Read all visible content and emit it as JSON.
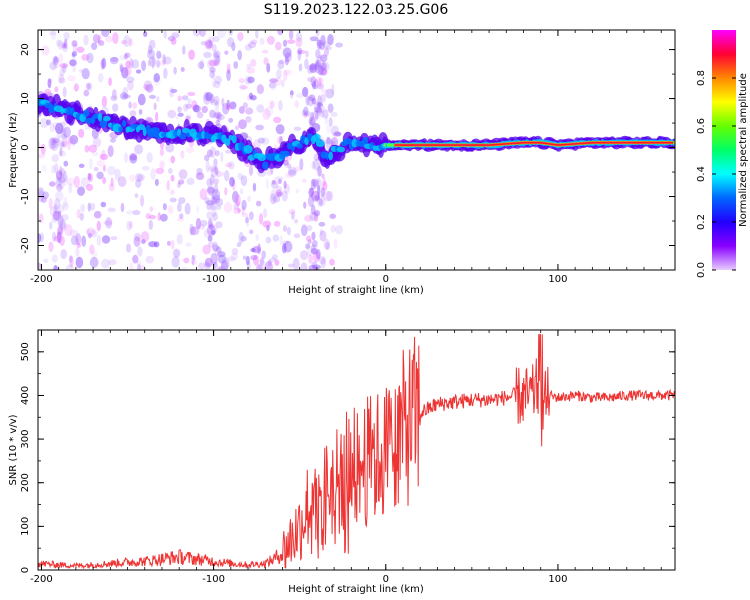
{
  "figure": {
    "title": "S119.2023.122.03.25.G06"
  },
  "colors": {
    "snr_line": "#ee3333",
    "frame": "#000000",
    "ridge": "#5500ee",
    "scatter": "#9966ee",
    "colormap": [
      "#ff00ff",
      "#ff0033",
      "#ff8800",
      "#ffff00",
      "#66ff00",
      "#00ff66",
      "#00ffff",
      "#0066ff",
      "#2200ff",
      "#8800ff",
      "#e8ccff"
    ]
  },
  "chart_data": [
    {
      "type": "heatmap",
      "xlabel": "Height of straight line (km)",
      "ylabel": "Frequency (Hz)",
      "xlim": [
        -202,
        168
      ],
      "ylim": [
        -25,
        24
      ],
      "xticks": [
        "-200",
        "-100",
        "0",
        "100"
      ],
      "yticks": [
        "20",
        "10",
        "0",
        "-10",
        "-20"
      ],
      "colorbar": {
        "label": "Normalized spectral amplitude",
        "range": [
          0,
          1
        ],
        "ticks": [
          "0.0",
          "0.2",
          "0.4",
          "0.6",
          "0.8"
        ]
      },
      "ridge": {
        "x": [
          -200,
          -190,
          -180,
          -170,
          -160,
          -150,
          -140,
          -130,
          -120,
          -110,
          -100,
          -90,
          -80,
          -70,
          -60,
          -50,
          -45,
          -40,
          -35,
          -30,
          -25,
          -20,
          -15,
          -10,
          -5,
          0,
          10,
          20,
          40,
          60,
          80,
          90,
          100,
          120,
          140,
          168
        ],
        "y": [
          9,
          8,
          7,
          6,
          5,
          4,
          3.5,
          3,
          3,
          3,
          2.5,
          1.5,
          -1,
          -3,
          -1,
          1,
          2,
          1.5,
          -2,
          -1,
          0,
          1,
          1.5,
          0.5,
          0.5,
          0.5,
          0.5,
          0.5,
          0.5,
          0.5,
          1,
          1,
          0.5,
          1,
          1,
          1
        ]
      }
    },
    {
      "type": "line",
      "xlabel": "Height of straight line (km)",
      "ylabel": "SNR (10 * v/v)",
      "xlim": [
        -202,
        168
      ],
      "ylim": [
        0,
        550
      ],
      "xticks": [
        "-200",
        "-100",
        "0",
        "100"
      ],
      "yticks": [
        "500",
        "400",
        "300",
        "200",
        "100",
        "0"
      ],
      "series": [
        {
          "x": [
            -202,
            -190,
            -180,
            -170,
            -160,
            -150,
            -140,
            -130,
            -120,
            -110,
            -100,
            -90,
            -80,
            -70,
            -65,
            -60,
            -55,
            -50,
            -45,
            -40,
            -35,
            -30,
            -25,
            -20,
            -15,
            -10,
            -5,
            0,
            5,
            10,
            15,
            20,
            25,
            30,
            40,
            50,
            60,
            70,
            75,
            80,
            85,
            88,
            90,
            92,
            95,
            100,
            110,
            120,
            130,
            140,
            150,
            160,
            168
          ],
          "y": [
            15,
            12,
            10,
            12,
            15,
            18,
            20,
            25,
            30,
            25,
            20,
            15,
            12,
            15,
            25,
            40,
            70,
            100,
            150,
            180,
            190,
            200,
            220,
            230,
            240,
            250,
            260,
            270,
            300,
            320,
            340,
            360,
            370,
            380,
            385,
            390,
            390,
            395,
            400,
            395,
            400,
            420,
            330,
            390,
            400,
            395,
            400,
            395,
            395,
            400,
            400,
            400,
            400
          ]
        }
      ]
    }
  ]
}
